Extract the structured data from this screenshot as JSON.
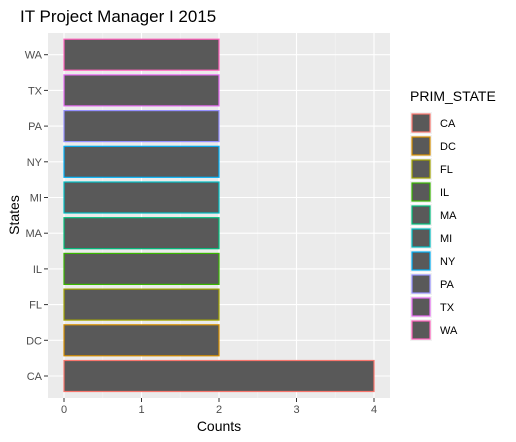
{
  "chart_data": {
    "type": "bar",
    "orientation": "horizontal",
    "title": "IT Project Manager I 2015",
    "xlabel": "Counts",
    "ylabel": "States",
    "categories": [
      "CA",
      "DC",
      "FL",
      "IL",
      "MA",
      "MI",
      "NY",
      "PA",
      "TX",
      "WA"
    ],
    "values": [
      4,
      2,
      2,
      2,
      2,
      2,
      2,
      2,
      2,
      2
    ],
    "xlim": [
      0,
      4
    ],
    "xticks": [
      0,
      1,
      2,
      3,
      4
    ],
    "grid": true,
    "bar_fill": "#595959",
    "panel_background": "#ebebeb",
    "outline_colors": [
      "#f8766d",
      "#d89000",
      "#a3a500",
      "#39b600",
      "#00bf7d",
      "#00bfc4",
      "#00b0f6",
      "#9590ff",
      "#e76bf3",
      "#ff62bc"
    ],
    "legend": {
      "title": "PRIM_STATE",
      "position": "right",
      "entries": [
        "CA",
        "DC",
        "FL",
        "IL",
        "MA",
        "MI",
        "NY",
        "PA",
        "TX",
        "WA"
      ]
    }
  }
}
